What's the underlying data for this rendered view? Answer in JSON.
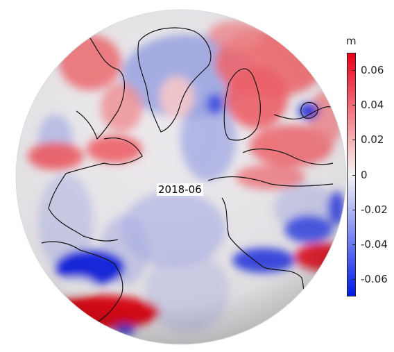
{
  "map": {
    "date_label": "2018-06",
    "projection": "orthographic globe centered on the North Atlantic",
    "colormap": "blue-white-red diverging"
  },
  "colorbar": {
    "unit": "m",
    "min": -0.07,
    "max": 0.07,
    "ticks": [
      "0.06",
      "0.04",
      "0.02",
      "0",
      "-0.02",
      "-0.04",
      "-0.06"
    ],
    "tick_values": [
      0.06,
      0.04,
      0.02,
      0,
      -0.02,
      -0.04,
      -0.06
    ],
    "colors": {
      "high": "#e8001a",
      "mid": "#f2f2f2",
      "low": "#0019e6"
    }
  }
}
